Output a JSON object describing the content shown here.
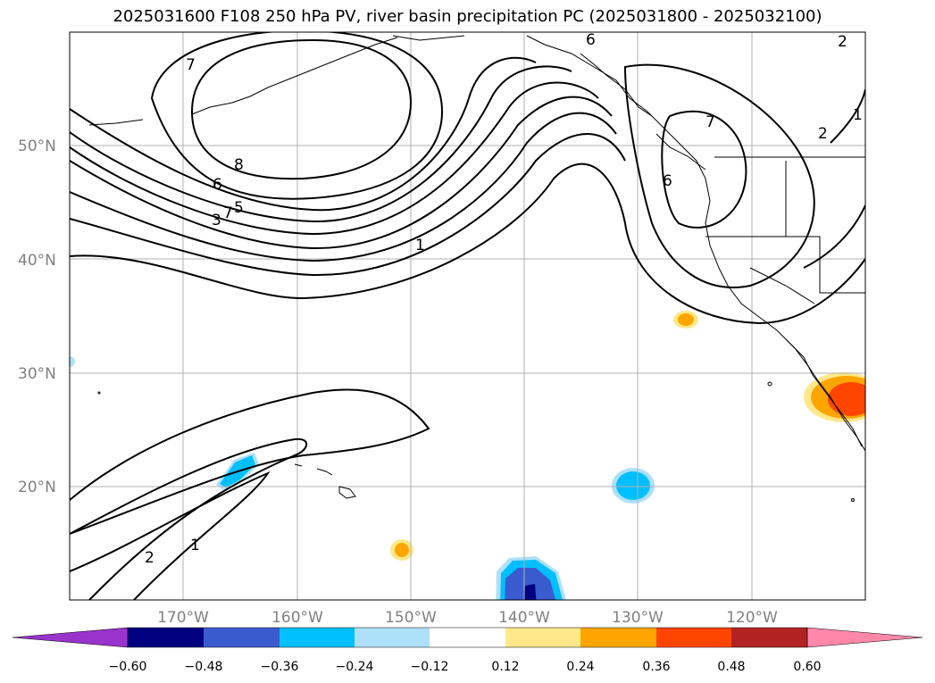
{
  "title": "2025031600 F108 250 hPa PV, river basin precipitation PC (2025031800 - 2025032100)",
  "map": {
    "lat_labels": [
      "50°N",
      "40°N",
      "30°N",
      "20°N"
    ],
    "lon_labels": [
      "170°W",
      "160°W",
      "150°W",
      "140°W",
      "130°W",
      "120°W"
    ],
    "contour_labels": [
      "7",
      "8",
      "6",
      "5",
      "7",
      "3",
      "1",
      "6",
      "7",
      "6",
      "2",
      "2",
      "1",
      "2",
      "1"
    ]
  },
  "colorbar": {
    "ticks": [
      "−0.60",
      "−0.48",
      "−0.36",
      "−0.24",
      "−0.12",
      "0.12",
      "0.24",
      "0.36",
      "0.48",
      "0.60"
    ],
    "colors": [
      "#9933cc",
      "#000080",
      "#3a5bd0",
      "#00bfff",
      "#aee0fa",
      "#ffffff",
      "#ffe88a",
      "#ffa500",
      "#ff4500",
      "#b22222",
      "#ff88aa"
    ]
  }
}
